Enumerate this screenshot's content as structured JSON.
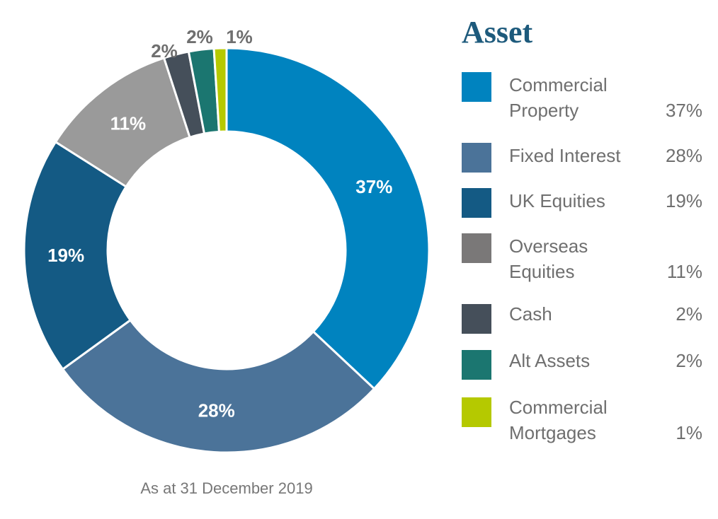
{
  "chart_data": {
    "type": "pie",
    "variant": "donut",
    "title": "Asset",
    "note": "As at 31 December 2019",
    "slices": [
      {
        "label": "Commercial Property",
        "value": 37,
        "display": "37%",
        "color": "#0083bf"
      },
      {
        "label": "Fixed Interest",
        "value": 28,
        "display": "28%",
        "color": "#4b7399"
      },
      {
        "label": "UK Equities",
        "value": 19,
        "display": "19%",
        "color": "#145a84"
      },
      {
        "label": "Overseas Equities",
        "value": 11,
        "display": "11%",
        "color": "#9a9a9a"
      },
      {
        "label": "Cash",
        "value": 2,
        "display": "2%",
        "color": "#454f5a"
      },
      {
        "label": "Alt Assets",
        "value": 2,
        "display": "2%",
        "color": "#1b7670"
      },
      {
        "label": "Commercial Mortgages",
        "value": 1,
        "display": "1%",
        "color": "#b5c900"
      }
    ],
    "legend": {
      "placement": "right",
      "entries": [
        {
          "name": "Commercial\nProperty",
          "value": "37%",
          "color": "#0083bf"
        },
        {
          "name": "Fixed Interest",
          "value": "28%",
          "color": "#4b7399"
        },
        {
          "name": "UK Equities",
          "value": "19%",
          "color": "#145a84"
        },
        {
          "name": "Overseas\nEquities",
          "value": "11%",
          "color": "#7a7878"
        },
        {
          "name": "Cash",
          "value": "2%",
          "color": "#454f5a"
        },
        {
          "name": "Alt Assets",
          "value": "2%",
          "color": "#1b7670"
        },
        {
          "name": "Commercial\nMortgages",
          "value": "1%",
          "color": "#b5c900"
        }
      ]
    }
  }
}
